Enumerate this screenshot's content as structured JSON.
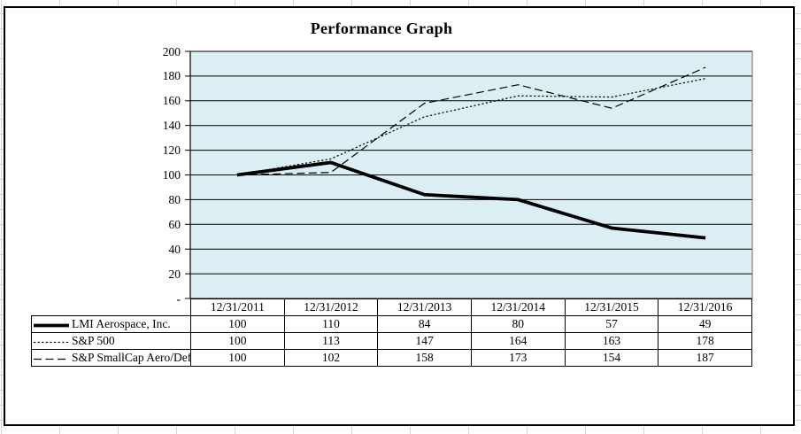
{
  "colors": {
    "plot_bg": "#daeef3",
    "line": "#000000",
    "grid_line": "#000000",
    "plot_right_border": "#808080",
    "frame_border": "#000000",
    "sheet_grid_stub": "#d6d6d6"
  },
  "chart_data": {
    "type": "line",
    "title": "Performance Graph",
    "categories": [
      "12/31/2011",
      "12/31/2012",
      "12/31/2013",
      "12/31/2014",
      "12/31/2015",
      "12/31/2016"
    ],
    "series": [
      {
        "name": "LMI Aerospace, Inc.",
        "values": [
          100,
          110,
          84,
          80,
          57,
          49
        ],
        "style": "solid-thick"
      },
      {
        "name": "S&P 500",
        "values": [
          100,
          113,
          147,
          164,
          163,
          178
        ],
        "style": "dotted"
      },
      {
        "name": "S&P SmallCap Aero/Def",
        "values": [
          100,
          102,
          158,
          173,
          154,
          187
        ],
        "style": "dashed"
      }
    ],
    "ylim": [
      0,
      200
    ],
    "ytick_step": 20,
    "ytick_labels": [
      "200",
      "180",
      "160",
      "140",
      "120",
      "100",
      "80",
      "60",
      "40",
      "20",
      "-"
    ],
    "grid": true,
    "legend_position": "data-table-left-column",
    "x_labels_position": "data-table-header"
  }
}
